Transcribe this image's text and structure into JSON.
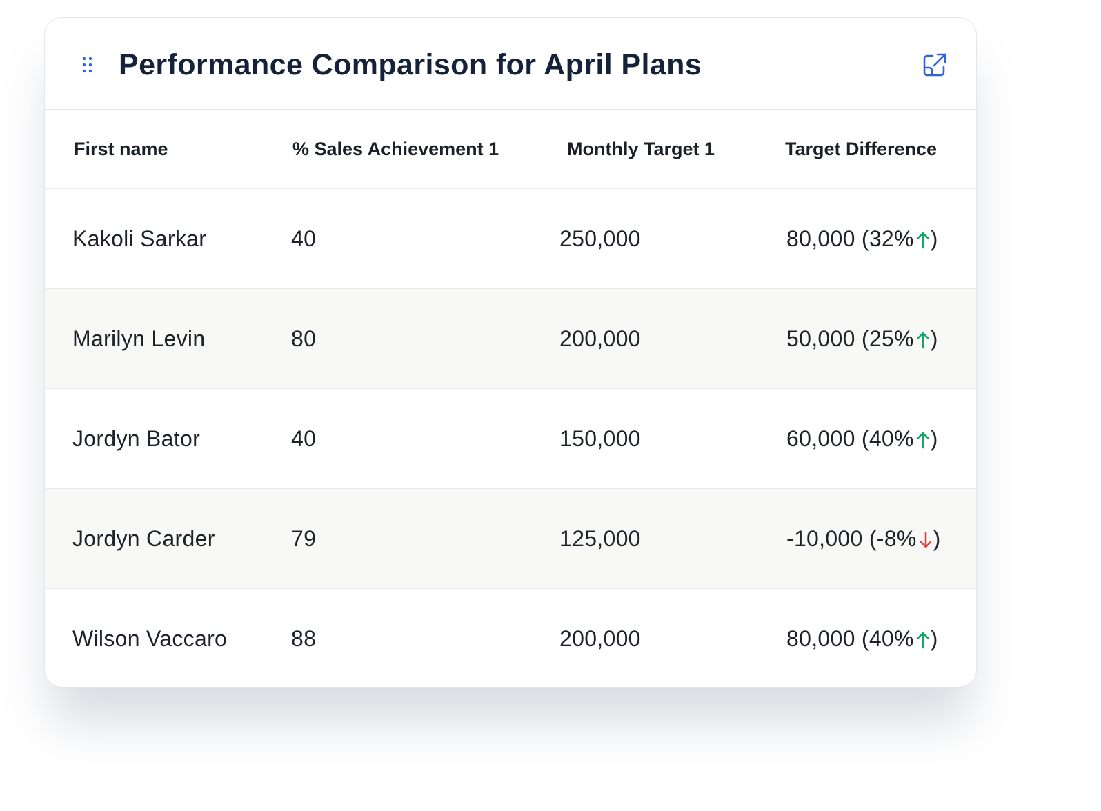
{
  "title": "Performance Comparison for April Plans",
  "icons": {
    "drag": "drag-handle-icon",
    "expand": "external-link-icon",
    "up": "arrow-up-icon",
    "down": "arrow-down-icon"
  },
  "colors": {
    "accent": "#2f63d6",
    "up": "#1aa36b",
    "down": "#e0453a"
  },
  "columns": [
    "First name",
    "% Sales Achievement 1",
    "Monthly Target 1",
    "Target Difference"
  ],
  "rows": [
    {
      "name": "Kakoli Sarkar",
      "achievement": "40",
      "target": "250,000",
      "diff": "80,000 (32%",
      "trend": "up"
    },
    {
      "name": "Marilyn Levin",
      "achievement": "80",
      "target": "200,000",
      "diff": "50,000 (25%",
      "trend": "up"
    },
    {
      "name": "Jordyn Bator",
      "achievement": "40",
      "target": "150,000",
      "diff": "60,000 (40%",
      "trend": "up"
    },
    {
      "name": "Jordyn Carder",
      "achievement": "79",
      "target": "125,000",
      "diff": "-10,000 (-8%",
      "trend": "down"
    },
    {
      "name": "Wilson Vaccaro",
      "achievement": "88",
      "target": "200,000",
      "diff": "80,000 (40%",
      "trend": "up"
    }
  ]
}
